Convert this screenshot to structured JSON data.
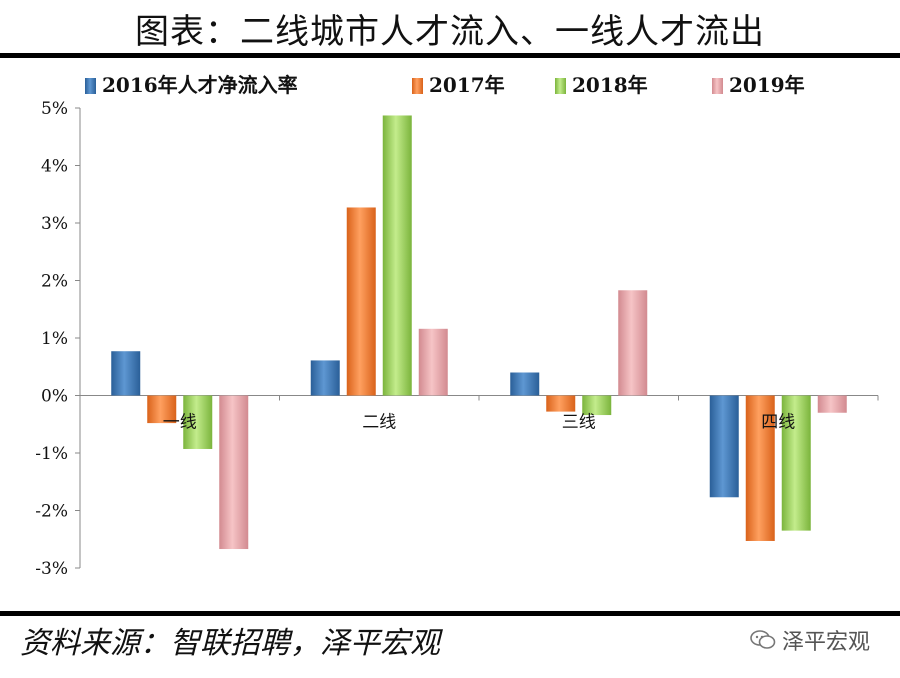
{
  "title": "图表：二线城市人才流入、一线人才流出",
  "source": "资料来源：智联招聘，泽平宏观",
  "watermark": "泽平宏观",
  "chart_data": {
    "type": "bar",
    "categories": [
      "一线",
      "二线",
      "三线",
      "四线"
    ],
    "series": [
      {
        "name": "2016年人才净流入率",
        "color": "#3b78b8",
        "values": [
          0.77,
          0.61,
          0.4,
          -1.77
        ]
      },
      {
        "name": "2017年",
        "color": "#f07b2a",
        "values": [
          -0.48,
          3.27,
          -0.28,
          -2.53
        ]
      },
      {
        "name": "2018年",
        "color": "#9bd05a",
        "values": [
          -0.93,
          4.87,
          -0.34,
          -2.35
        ]
      },
      {
        "name": "2019年",
        "color": "#e4a4a8",
        "values": [
          -2.67,
          1.16,
          1.83,
          -0.3
        ]
      }
    ],
    "yticks": [
      "5%",
      "4%",
      "3%",
      "2%",
      "1%",
      "0%",
      "-1%",
      "-2%",
      "-3%"
    ],
    "ylim": [
      -3,
      5
    ],
    "legend": "top",
    "grid": false
  }
}
